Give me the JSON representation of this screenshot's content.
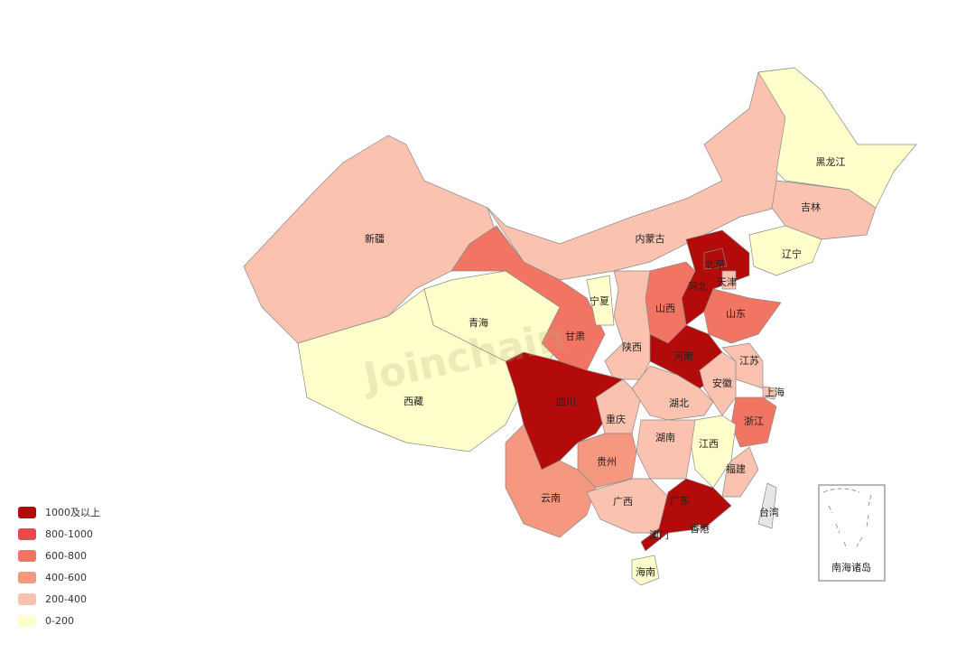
{
  "watermark": "Joinchain",
  "legend": [
    {
      "label": "1000及以上",
      "color": "#b30a0a"
    },
    {
      "label": "800-1000",
      "color": "#e84a4a"
    },
    {
      "label": "600-800",
      "color": "#f27462"
    },
    {
      "label": "400-600",
      "color": "#f6987f"
    },
    {
      "label": "200-400",
      "color": "#fcc2b0"
    },
    {
      "label": "0-200",
      "color": "#ffffcc"
    }
  ],
  "no_data_color": "#e6e6e6",
  "regions": [
    {
      "name": "新疆",
      "level": 4
    },
    {
      "name": "西藏",
      "level": 5
    },
    {
      "name": "青海",
      "level": 5
    },
    {
      "name": "甘肃",
      "level": 2
    },
    {
      "name": "宁夏",
      "level": 5
    },
    {
      "name": "内蒙古",
      "level": 4
    },
    {
      "name": "黑龙江",
      "level": 5
    },
    {
      "name": "吉林",
      "level": 4
    },
    {
      "name": "辽宁",
      "level": 5
    },
    {
      "name": "河北",
      "level": 0
    },
    {
      "name": "北京",
      "level": 0
    },
    {
      "name": "天津",
      "level": 4
    },
    {
      "name": "山西",
      "level": 2
    },
    {
      "name": "山东",
      "level": 2
    },
    {
      "name": "河南",
      "level": 0
    },
    {
      "name": "陕西",
      "level": 4
    },
    {
      "name": "四川",
      "level": 0
    },
    {
      "name": "重庆",
      "level": 4
    },
    {
      "name": "湖北",
      "level": 4
    },
    {
      "name": "安徽",
      "level": 4
    },
    {
      "name": "江苏",
      "level": 4
    },
    {
      "name": "上海",
      "level": 4
    },
    {
      "name": "浙江",
      "level": 2
    },
    {
      "name": "江西",
      "level": 5
    },
    {
      "name": "湖南",
      "level": 4
    },
    {
      "name": "贵州",
      "level": 3
    },
    {
      "name": "云南",
      "level": 3
    },
    {
      "name": "广西",
      "level": 4
    },
    {
      "name": "广东",
      "level": 0
    },
    {
      "name": "福建",
      "level": 4
    },
    {
      "name": "海南",
      "level": 5
    },
    {
      "name": "台湾",
      "level": null
    },
    {
      "name": "香港",
      "level": null
    },
    {
      "name": "澳门",
      "level": null
    }
  ],
  "inset_label": "南海诸岛"
}
